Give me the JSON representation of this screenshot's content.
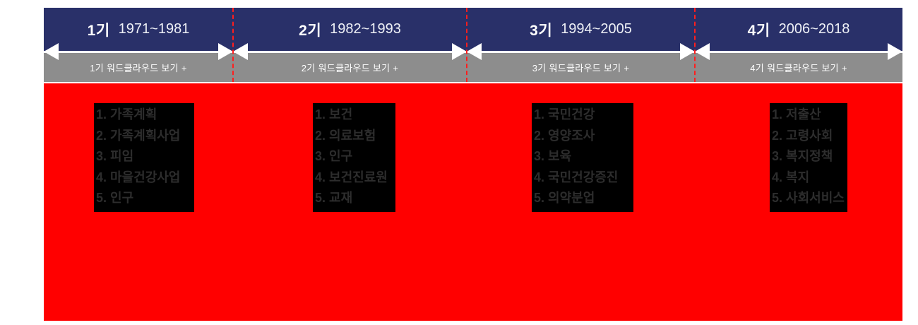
{
  "colors": {
    "header_navy": "#293069",
    "button_gray": "#8d8d8d",
    "panel_red": "#ff0000",
    "divider_dashed_red": "#ff1e1e",
    "axis_white": "#ffffff",
    "keyword_box_black": "#000000",
    "keyword_text": "#2d2d2d"
  },
  "timeline": {
    "periods": [
      {
        "label": "1기",
        "years": "1971~1981",
        "wordcloud_button": "1기 워드클라우드 보기 +",
        "keywords": [
          "1. 가족계획",
          "2. 가족계획사업",
          "3. 피임",
          "4. 마을건강사업",
          "5. 인구"
        ]
      },
      {
        "label": "2기",
        "years": "1982~1993",
        "wordcloud_button": "2기 워드클라우드 보기 +",
        "keywords": [
          "1. 보건",
          "2. 의료보험",
          "3. 인구",
          "4. 보건진료원",
          "5. 교재"
        ]
      },
      {
        "label": "3기",
        "years": "1994~2005",
        "wordcloud_button": "3기 워드클라우드 보기 +",
        "keywords": [
          "1. 국민건강",
          "2. 영양조사",
          "3. 보육",
          "4. 국민건강증진",
          "5. 의약분업"
        ]
      },
      {
        "label": "4기",
        "years": "2006~2018",
        "wordcloud_button": "4기 워드클라우드 보기 +",
        "keywords": [
          "1. 저출산",
          "2. 고령사회",
          "3. 복지정책",
          "4. 복지",
          "5. 사회서비스"
        ]
      }
    ]
  }
}
